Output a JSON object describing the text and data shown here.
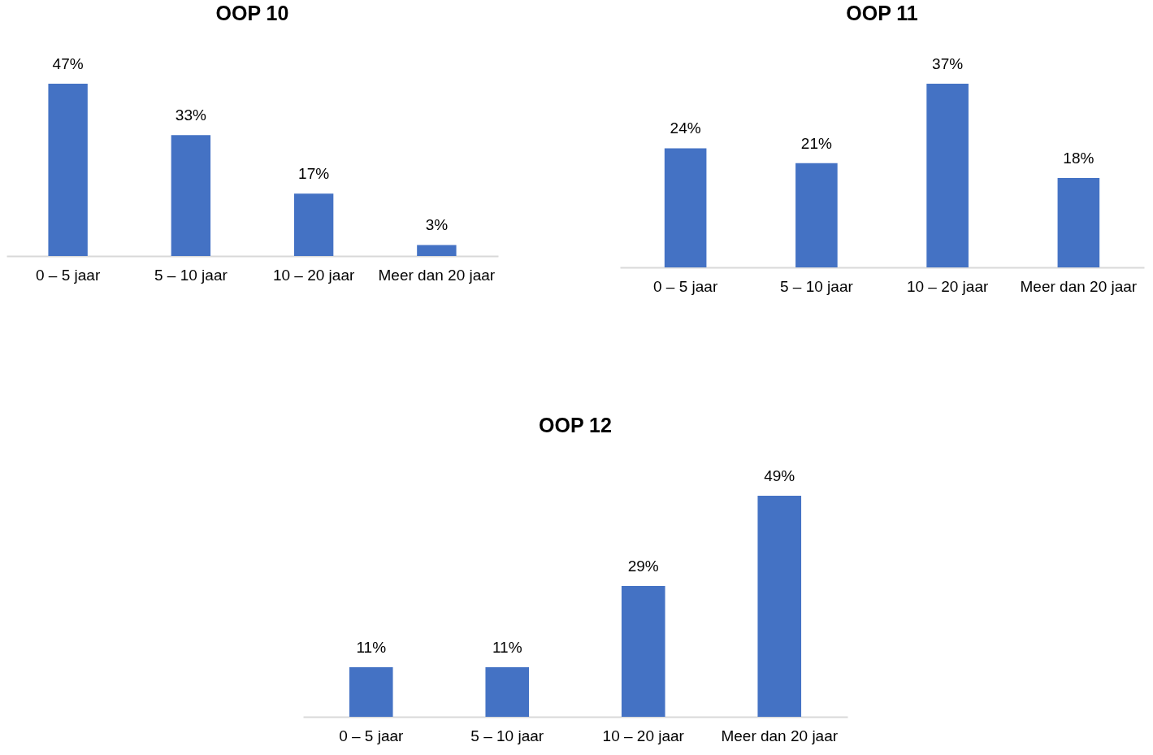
{
  "chart_data": [
    {
      "type": "bar",
      "title": "OOP 10",
      "categories": [
        "0 – 5 jaar",
        "5 – 10 jaar",
        "10 – 20 jaar",
        "Meer dan 20 jaar"
      ],
      "values": [
        47,
        33,
        17,
        3
      ],
      "value_labels": [
        "47%",
        "33%",
        "17%",
        "3%"
      ],
      "color": "#4472c4"
    },
    {
      "type": "bar",
      "title": "OOP 11",
      "categories": [
        "0 – 5 jaar",
        "5 – 10 jaar",
        "10 – 20 jaar",
        "Meer dan 20 jaar"
      ],
      "values": [
        24,
        21,
        37,
        18
      ],
      "value_labels": [
        "24%",
        "21%",
        "37%",
        "18%"
      ],
      "color": "#4472c4"
    },
    {
      "type": "bar",
      "title": "OOP 12",
      "categories": [
        "0 – 5 jaar",
        "5 – 10 jaar",
        "10 – 20 jaar",
        "Meer dan 20 jaar"
      ],
      "values": [
        11,
        11,
        29,
        49
      ],
      "value_labels": [
        "11%",
        "11%",
        "29%",
        "49%"
      ],
      "color": "#4472c4"
    }
  ]
}
